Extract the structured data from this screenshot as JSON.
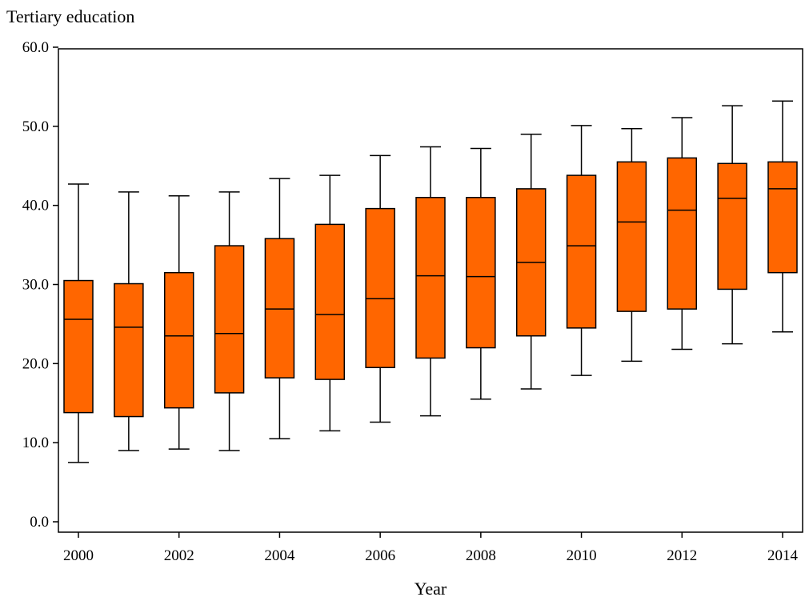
{
  "chart_data": {
    "type": "box",
    "ylabel": "Tertiary education",
    "xlabel": "Year",
    "ylim": [
      0,
      60
    ],
    "yticks": [
      "0.0",
      "10.0",
      "20.0",
      "30.0",
      "40.0",
      "50.0",
      "60.0"
    ],
    "xlim": [
      2000,
      2014
    ],
    "xticks": [
      "2000",
      "2002",
      "2004",
      "2006",
      "2008",
      "2010",
      "2012",
      "2014"
    ],
    "box_color": "#ff6600",
    "line_color": "#000000",
    "grid": false,
    "boxes": [
      {
        "x": 2000,
        "min": 7.5,
        "q1": 13.8,
        "median": 25.6,
        "q3": 30.5,
        "max": 42.7
      },
      {
        "x": 2001,
        "min": 9.0,
        "q1": 13.3,
        "median": 24.6,
        "q3": 30.1,
        "max": 41.7
      },
      {
        "x": 2002,
        "min": 9.2,
        "q1": 14.4,
        "median": 23.5,
        "q3": 31.5,
        "max": 41.2
      },
      {
        "x": 2003,
        "min": 9.0,
        "q1": 16.3,
        "median": 23.8,
        "q3": 34.9,
        "max": 41.7
      },
      {
        "x": 2004,
        "min": 10.5,
        "q1": 18.2,
        "median": 26.9,
        "q3": 35.8,
        "max": 43.4
      },
      {
        "x": 2005,
        "min": 11.5,
        "q1": 18.0,
        "median": 26.2,
        "q3": 37.6,
        "max": 43.8
      },
      {
        "x": 2006,
        "min": 12.6,
        "q1": 19.5,
        "median": 28.2,
        "q3": 39.6,
        "max": 46.3
      },
      {
        "x": 2007,
        "min": 13.4,
        "q1": 20.7,
        "median": 31.1,
        "q3": 41.0,
        "max": 47.4
      },
      {
        "x": 2008,
        "min": 15.5,
        "q1": 22.0,
        "median": 31.0,
        "q3": 41.0,
        "max": 47.2
      },
      {
        "x": 2009,
        "min": 16.8,
        "q1": 23.5,
        "median": 32.8,
        "q3": 42.1,
        "max": 49.0
      },
      {
        "x": 2010,
        "min": 18.5,
        "q1": 24.5,
        "median": 34.9,
        "q3": 43.8,
        "max": 50.1
      },
      {
        "x": 2011,
        "min": 20.3,
        "q1": 26.6,
        "median": 37.9,
        "q3": 45.5,
        "max": 49.7
      },
      {
        "x": 2012,
        "min": 21.8,
        "q1": 26.9,
        "median": 39.4,
        "q3": 46.0,
        "max": 51.1
      },
      {
        "x": 2013,
        "min": 22.5,
        "q1": 29.4,
        "median": 40.9,
        "q3": 45.3,
        "max": 52.6
      },
      {
        "x": 2014,
        "min": 24.0,
        "q1": 31.5,
        "median": 42.1,
        "q3": 45.5,
        "max": 53.2
      }
    ]
  }
}
